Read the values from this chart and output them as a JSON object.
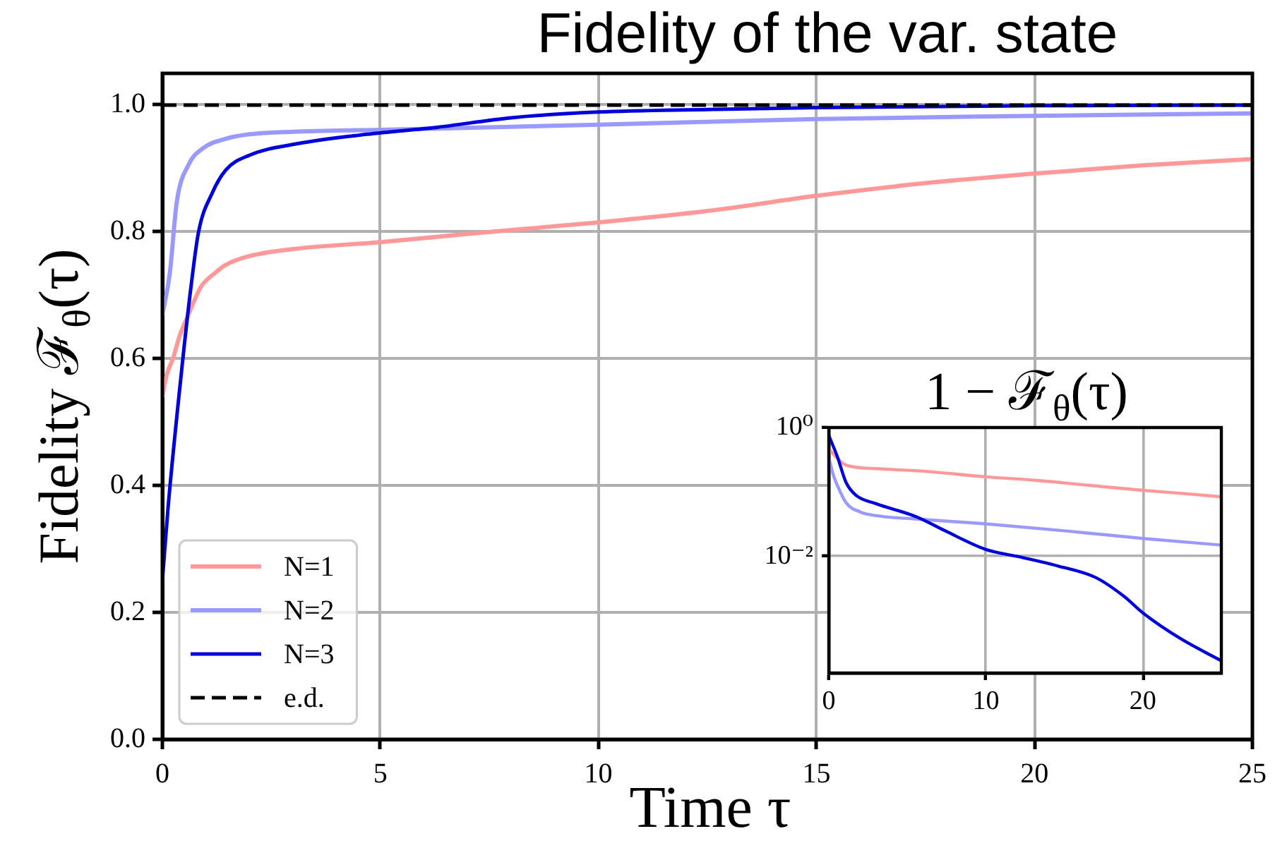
{
  "chart_data": [
    {
      "type": "line",
      "title": "Fidelity of the var. state",
      "xlabel": "Time τ",
      "ylabel": "Fidelity ℱ$_{θ}$(τ)",
      "xlim": [
        0,
        25
      ],
      "xticks": [
        0,
        5,
        10,
        15,
        20,
        25
      ],
      "ylim": [
        0,
        1.05
      ],
      "yticks": [
        {
          "value": 0,
          "label": "0.0"
        },
        0.2,
        0.4,
        0.6,
        0.8,
        {
          "value": 1,
          "label": "1.0"
        }
      ],
      "grid": true,
      "legend": "bottom left",
      "line_style": "solid",
      "series": [
        {
          "name": "N=1",
          "color": "#ff9999",
          "x": [
            0,
            0.04,
            0.1,
            0.24,
            0.4,
            0.6,
            0.88,
            1.2,
            1.45,
            2,
            3,
            5,
            7,
            10,
            12.5,
            15,
            17.5,
            20,
            22.5,
            25
          ],
          "values": [
            0.54,
            0.556,
            0.575,
            0.6,
            0.637,
            0.67,
            0.713,
            0.735,
            0.748,
            0.762,
            0.773,
            0.784,
            0.797,
            0.815,
            0.833,
            0.857,
            0.877,
            0.892,
            0.905,
            0.915
          ]
        },
        {
          "name": "N=2",
          "color": "#9999ff",
          "x": [
            0,
            0.17,
            0.33,
            0.6,
            0.93,
            1.46,
            2,
            3,
            5,
            10,
            15,
            20,
            25
          ],
          "values": [
            0.669,
            0.735,
            0.847,
            0.906,
            0.932,
            0.947,
            0.954,
            0.958,
            0.961,
            0.969,
            0.978,
            0.983,
            0.987
          ]
        },
        {
          "name": "N=3",
          "color": "#0000dd",
          "x": [
            0,
            0.13,
            0.47,
            0.65,
            0.83,
            1.14,
            1.46,
            2,
            3.08,
            4.69,
            6.3,
            8,
            10,
            12.5,
            15,
            20,
            25
          ],
          "values": [
            0.25,
            0.365,
            0.6,
            0.71,
            0.8,
            0.861,
            0.898,
            0.921,
            0.939,
            0.954,
            0.965,
            0.98,
            0.989,
            0.993,
            0.996,
            0.999,
            1.0
          ]
        },
        {
          "name": "e.d.",
          "color": "#000000",
          "line_style": "dashed",
          "x": [
            0,
            25
          ],
          "values": [
            1,
            1
          ]
        }
      ]
    },
    {
      "type": "line",
      "title": "1 − ℱ$_{θ}$(τ)",
      "xlim": [
        0,
        25
      ],
      "xticks": [
        0,
        10,
        20
      ],
      "ylim": [
        0.000155,
        1
      ],
      "yticks": [
        {
          "value": 1,
          "label": "10⁰"
        },
        {
          "value": 0.01,
          "label": "10⁻²"
        }
      ],
      "log": "y",
      "grid": true,
      "line_style": "solid",
      "series": [
        {
          "color": "#ff9999",
          "x": [
            0,
            0.5,
            1.1,
            3,
            6,
            10,
            13.4,
            16.4,
            20,
            22.5,
            25
          ],
          "values": [
            0.47,
            0.34,
            0.26,
            0.23,
            0.21,
            0.172,
            0.15,
            0.128,
            0.106,
            0.095,
            0.084
          ]
        },
        {
          "color": "#9999ff",
          "x": [
            0,
            0.3,
            0.55,
            1.1,
            2,
            3,
            5.6,
            10,
            15,
            20,
            25
          ],
          "values": [
            0.34,
            0.18,
            0.125,
            0.068,
            0.049,
            0.043,
            0.038,
            0.032,
            0.025,
            0.019,
            0.015
          ]
        },
        {
          "color": "#0000dd",
          "x": [
            0,
            0.55,
            1.1,
            1.75,
            3,
            5.6,
            7.4,
            10,
            12,
            14.6,
            17,
            18.8,
            20,
            22.4,
            25
          ],
          "values": [
            0.75,
            0.35,
            0.14,
            0.088,
            0.066,
            0.041,
            0.025,
            0.0128,
            0.01,
            0.0071,
            0.0047,
            0.0024,
            0.00133,
            0.00053,
            0.00024
          ]
        }
      ]
    }
  ]
}
